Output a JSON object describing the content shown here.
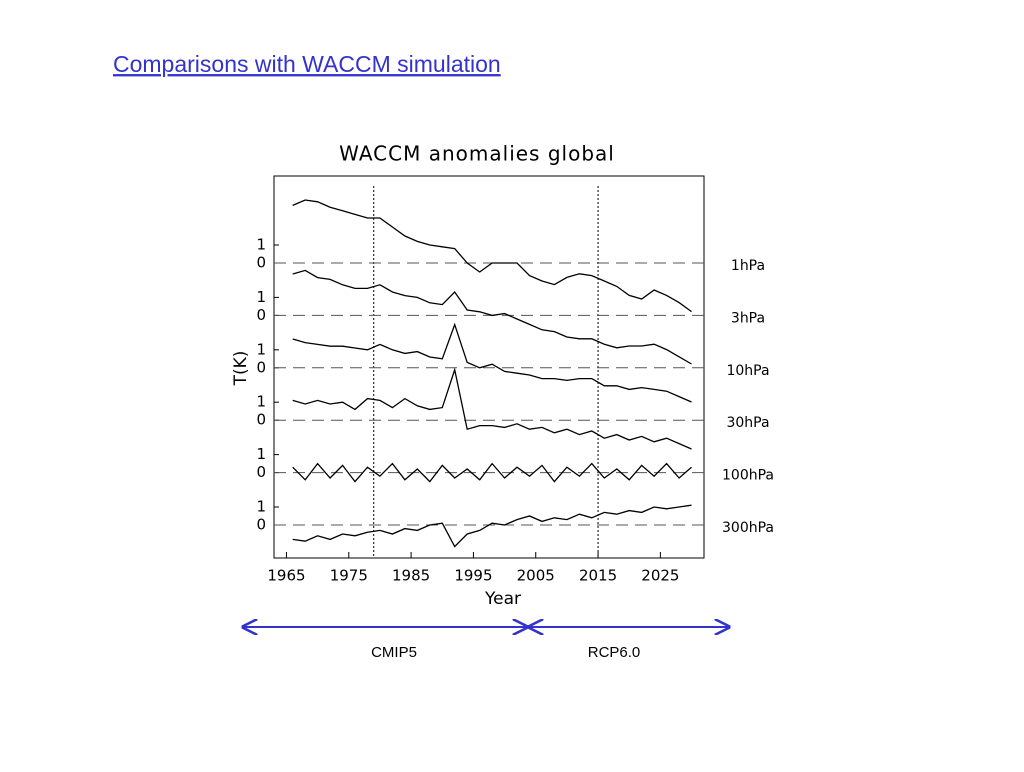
{
  "header": {
    "title": "Comparisons with WACCM simulation"
  },
  "chart_data": {
    "type": "line",
    "title": "WACCM anomalies global",
    "x_label": "Year",
    "y_label": "T(K)",
    "color": "#000000",
    "xlim": [
      1963,
      2032
    ],
    "xticks": [
      1965,
      1975,
      1985,
      1995,
      2005,
      2015,
      2025
    ],
    "vlines": [
      1979,
      2015
    ],
    "x": [
      1966,
      1968,
      1970,
      1972,
      1974,
      1976,
      1978,
      1980,
      1982,
      1984,
      1986,
      1988,
      1990,
      1992,
      1994,
      1996,
      1998,
      2000,
      2002,
      2004,
      2006,
      2008,
      2010,
      2012,
      2014,
      2016,
      2018,
      2020,
      2022,
      2024,
      2026,
      2028,
      2030
    ],
    "series": [
      {
        "name": "1hPa",
        "yticks": [
          0,
          1
        ],
        "values": [
          3.2,
          3.5,
          3.4,
          3.1,
          2.9,
          2.7,
          2.5,
          2.5,
          2.0,
          1.5,
          1.2,
          1.0,
          0.9,
          0.8,
          0.0,
          -0.5,
          0.0,
          0.0,
          0.0,
          -0.7,
          -1.0,
          -1.2,
          -0.8,
          -0.6,
          -0.7,
          -1.0,
          -1.3,
          -1.8,
          -2.0,
          -1.5,
          -1.8,
          -2.2,
          -2.7
        ]
      },
      {
        "name": "3hPa",
        "yticks": [
          0,
          1
        ],
        "values": [
          2.3,
          2.5,
          2.1,
          2.0,
          1.7,
          1.5,
          1.5,
          1.7,
          1.3,
          1.1,
          1.0,
          0.7,
          0.6,
          1.3,
          0.3,
          0.2,
          0.0,
          0.1,
          -0.2,
          -0.5,
          -0.8,
          -0.9,
          -1.2,
          -1.3,
          -1.3,
          -1.6,
          -1.8,
          -1.7,
          -1.7,
          -1.6,
          -1.9,
          -2.3,
          -2.7
        ]
      },
      {
        "name": "10hPa",
        "yticks": [
          0,
          1
        ],
        "values": [
          1.6,
          1.4,
          1.3,
          1.2,
          1.2,
          1.1,
          1.0,
          1.3,
          1.0,
          0.8,
          0.9,
          0.6,
          0.5,
          2.4,
          0.3,
          0.0,
          0.2,
          -0.2,
          -0.3,
          -0.4,
          -0.6,
          -0.6,
          -0.7,
          -0.6,
          -0.6,
          -1.0,
          -1.0,
          -1.2,
          -1.1,
          -1.2,
          -1.3,
          -1.6,
          -1.9
        ]
      },
      {
        "name": "30hPa",
        "yticks": [
          0,
          1
        ],
        "values": [
          1.1,
          0.9,
          1.1,
          0.9,
          1.0,
          0.6,
          1.2,
          1.1,
          0.7,
          1.2,
          0.8,
          0.6,
          0.7,
          2.8,
          -0.5,
          -0.3,
          -0.3,
          -0.4,
          -0.2,
          -0.5,
          -0.4,
          -0.7,
          -0.5,
          -0.8,
          -0.6,
          -1.0,
          -0.8,
          -1.1,
          -0.9,
          -1.2,
          -1.0,
          -1.3,
          -1.6
        ]
      },
      {
        "name": "100hPa",
        "yticks": [
          0,
          1
        ],
        "values": [
          0.3,
          -0.4,
          0.5,
          -0.3,
          0.4,
          -0.5,
          0.3,
          -0.2,
          0.5,
          -0.4,
          0.2,
          -0.5,
          0.4,
          -0.3,
          0.2,
          -0.4,
          0.5,
          -0.3,
          0.3,
          -0.2,
          0.4,
          -0.5,
          0.3,
          -0.2,
          0.5,
          -0.3,
          0.2,
          -0.4,
          0.4,
          -0.2,
          0.5,
          -0.3,
          0.3
        ]
      },
      {
        "name": "300hPa",
        "yticks": [
          0,
          1
        ],
        "values": [
          -0.8,
          -0.9,
          -0.6,
          -0.8,
          -0.5,
          -0.6,
          -0.4,
          -0.3,
          -0.5,
          -0.2,
          -0.3,
          0.0,
          0.1,
          -1.2,
          -0.5,
          -0.3,
          0.1,
          0.0,
          0.3,
          0.5,
          0.2,
          0.4,
          0.3,
          0.6,
          0.4,
          0.7,
          0.6,
          0.8,
          0.7,
          1.0,
          0.9,
          1.0,
          1.1
        ]
      }
    ]
  },
  "periods": [
    "CMIP5",
    "RCP6.0"
  ]
}
